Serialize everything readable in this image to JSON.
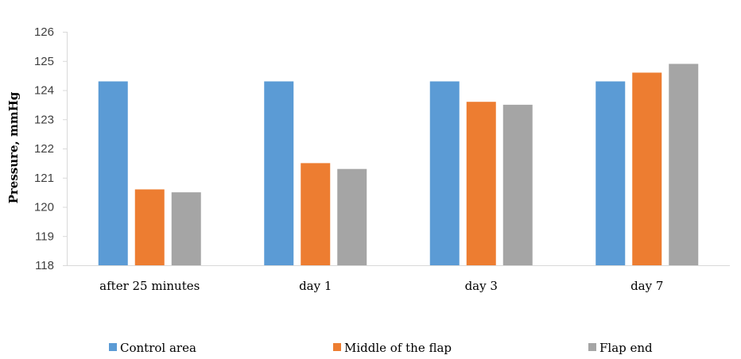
{
  "chart_data": {
    "type": "bar",
    "title": "",
    "xlabel": "",
    "ylabel": "Pressure, mmHg",
    "ylim": [
      118,
      126
    ],
    "yticks": [
      118,
      119,
      120,
      121,
      122,
      123,
      124,
      125,
      126
    ],
    "grid": false,
    "legend_position": "bottom",
    "categories": [
      "after 25 minutes",
      "day 1",
      "day 3",
      "day 7"
    ],
    "series": [
      {
        "name": "Control area",
        "color": "#5B9BD5",
        "values": [
          124.3,
          124.3,
          124.3,
          124.3
        ]
      },
      {
        "name": "Middle of the flap",
        "color": "#ED7D31",
        "values": [
          120.6,
          121.5,
          123.6,
          124.6
        ]
      },
      {
        "name": "Flap end",
        "color": "#A5A5A5",
        "values": [
          120.5,
          121.3,
          123.5,
          124.9
        ]
      }
    ]
  }
}
